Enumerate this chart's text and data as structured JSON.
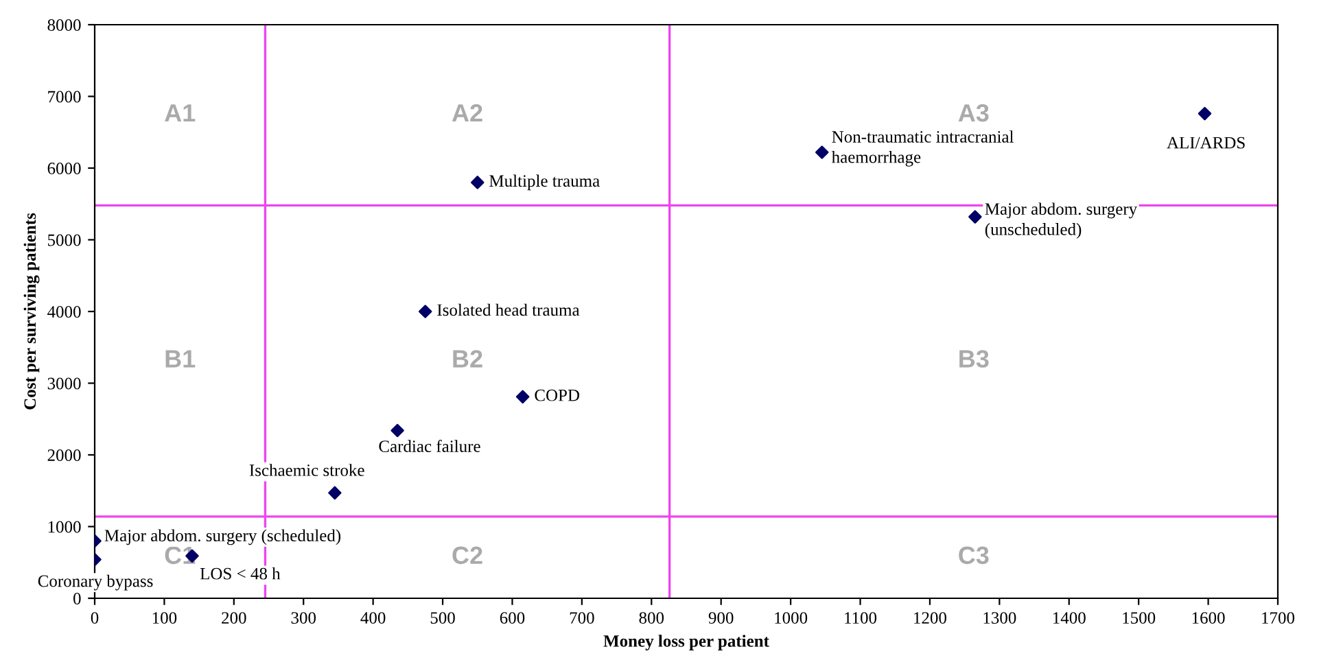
{
  "chart_data": {
    "type": "scatter",
    "xlabel": "Money loss per patient",
    "ylabel": "Cost per surviving patients",
    "x": [
      1595,
      1045,
      1265,
      550,
      475,
      615,
      435,
      345,
      0,
      0,
      140
    ],
    "series": [
      {
        "color": "#000066",
        "values": [
          6760,
          6220,
          5320,
          5800,
          4000,
          2810,
          2340,
          1470,
          800,
          540,
          590
        ]
      }
    ],
    "marker": "diamond",
    "xlim": [
      0,
      1700
    ],
    "xticks": [
      0,
      100,
      200,
      300,
      400,
      500,
      600,
      700,
      800,
      900,
      1000,
      1100,
      1200,
      1300,
      1400,
      1500,
      1600,
      1700
    ],
    "ylim": [
      0,
      8000
    ],
    "yticks": [
      0,
      1000,
      2000,
      3000,
      4000,
      5000,
      6000,
      7000,
      8000
    ],
    "grid": false,
    "legend": false,
    "ref_lines": [
      {
        "axis": "x",
        "value": 245,
        "color": "#ee44ee"
      },
      {
        "axis": "x",
        "value": 826,
        "color": "#ee44ee"
      },
      {
        "axis": "y",
        "value": 5480,
        "color": "#ee44ee"
      },
      {
        "axis": "y",
        "value": 1140,
        "color": "#ee44ee"
      }
    ],
    "annotations": [
      {
        "text": "ALI/ARDS",
        "x": 1595,
        "y": 6760
      },
      {
        "text": "Non-traumatic intracranial\nhaemorrhage",
        "x": 1045,
        "y": 6220
      },
      {
        "text": "Major abdom. surgery\n(unscheduled)",
        "x": 1265,
        "y": 5320
      },
      {
        "text": "Multiple trauma",
        "x": 550,
        "y": 5800
      },
      {
        "text": "Isolated head trauma",
        "x": 475,
        "y": 4000
      },
      {
        "text": "COPD",
        "x": 615,
        "y": 2810
      },
      {
        "text": "Cardiac failure",
        "x": 435,
        "y": 2340
      },
      {
        "text": "Ischaemic stroke",
        "x": 345,
        "y": 1470
      },
      {
        "text": "Major abdom. surgery (scheduled)",
        "x": 0,
        "y": 800
      },
      {
        "text": "Coronary bypass",
        "x": 0,
        "y": 540
      },
      {
        "text": "LOS < 48 h",
        "x": 140,
        "y": 590
      },
      "A1",
      "A2",
      "A3",
      "B1",
      "B2",
      "B3",
      "C1",
      "C2",
      "C3"
    ]
  }
}
